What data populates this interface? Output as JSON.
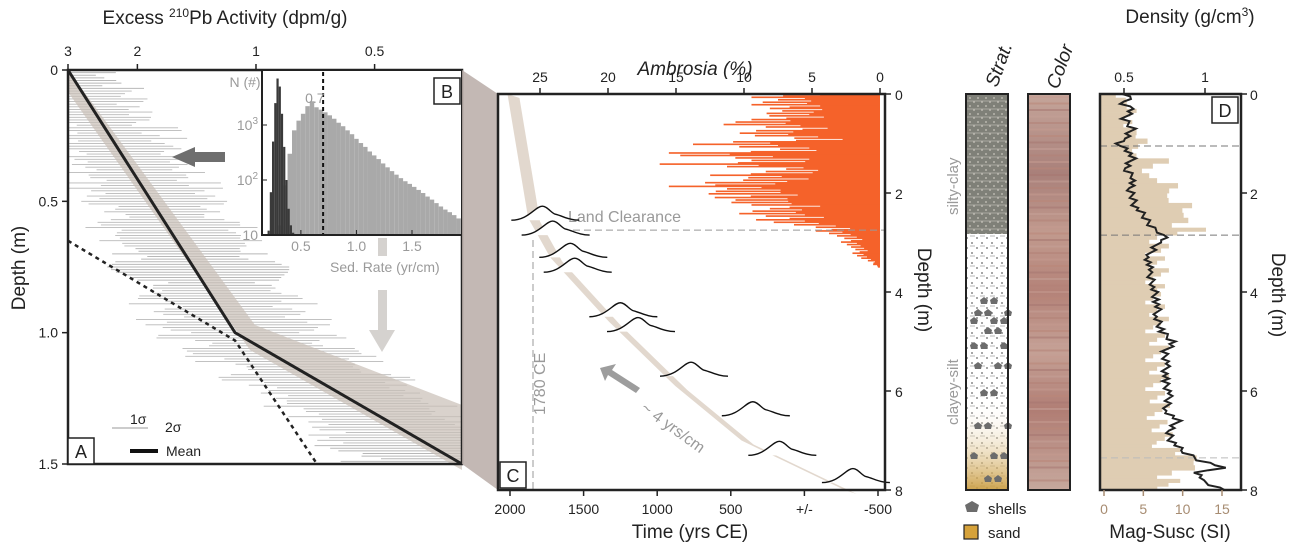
{
  "chart_data": [
    {
      "panel": "A",
      "type": "line",
      "xlabel": "Excess ²¹⁰Pb Activity (dpm/g)",
      "ylabel": "Depth (m)",
      "x_scale": "log",
      "x_ticks": [
        {
          "value": 3,
          "label": "3"
        },
        {
          "value": 2,
          "label": "2"
        },
        {
          "value": 1,
          "label": "1"
        },
        {
          "value": 0.5,
          "label": "0.5"
        }
      ],
      "y_ticks": [
        {
          "value": 0,
          "label": "0"
        },
        {
          "value": 0.5,
          "label": "0.5"
        },
        {
          "value": 1.0,
          "label": "1.0"
        },
        {
          "value": 1.5,
          "label": "1.5"
        }
      ],
      "xlim": [
        3,
        0.3
      ],
      "ylim": [
        0,
        1.5
      ],
      "series": [
        {
          "name": "Mean",
          "style": "solid",
          "points": [
            [
              3,
              0
            ],
            [
              1.13,
              1.0
            ],
            [
              0.3,
              1.5
            ]
          ]
        },
        {
          "style": "dotted",
          "points": [
            [
              3,
              0.65
            ],
            [
              1.13,
              1.03
            ],
            [
              0.7,
              1.5
            ]
          ]
        }
      ],
      "legend": {
        "items": [
          "1σ",
          "2σ",
          "Mean"
        ]
      }
    },
    {
      "panel": "B",
      "type": "bar",
      "title": "N (#)",
      "xlabel": "Sed. Rate (yr/cm)",
      "x_ticks": [
        "0.5",
        "1.0",
        "1.5"
      ],
      "y_ticks": [
        "10",
        "10²",
        "10³"
      ],
      "y_scale": "log",
      "ylim": [
        10,
        10000
      ],
      "xlim": [
        0.15,
        1.95
      ],
      "threshold": {
        "value": 0.7,
        "label": "0.7"
      },
      "bins_dark": {
        "start": 0.2,
        "width": 0.02,
        "values": [
          12,
          60,
          500,
          2500,
          7000,
          5000,
          1600,
          400,
          100,
          30,
          15,
          11
        ]
      },
      "bins_light": {
        "start": 0.3,
        "width": 0.04,
        "values": [
          15,
          80,
          300,
          800,
          1200,
          1600,
          2200,
          2700,
          2100,
          1900,
          1700,
          1500,
          1300,
          1100,
          950,
          800,
          680,
          560,
          470,
          400,
          330,
          280,
          240,
          200,
          170,
          145,
          125,
          108,
          95,
          85,
          75,
          66,
          58,
          50,
          44,
          38,
          33,
          29,
          26,
          23,
          20
        ]
      }
    },
    {
      "panel": "C",
      "type": "area",
      "top_xlabel": "Ambrosia (%)",
      "top_x_ticks": [
        "25",
        "20",
        "15",
        "10",
        "5",
        "0"
      ],
      "xlabel": "Time (yrs CE)",
      "x_ticks": [
        "2000",
        "1500",
        "1000",
        "500",
        "+/-",
        "-500"
      ],
      "ylabel": "Depth (m)",
      "y_ticks": [
        "0",
        "2",
        "4",
        "6",
        "8"
      ],
      "ylim": [
        0,
        8
      ],
      "annotations": [
        "Land Clearance",
        "1780 CE",
        "~ 4 yrs/cm"
      ],
      "age_depth": [
        [
          1990,
          0
        ],
        [
          1850,
          2.5
        ],
        [
          1700,
          3.3
        ],
        [
          1300,
          4.6
        ],
        [
          850,
          5.9
        ],
        [
          400,
          7.0
        ],
        [
          -300,
          8.0
        ]
      ],
      "date_peaks": [
        {
          "age": 1760,
          "depth": 2.55
        },
        {
          "age": 1690,
          "depth": 2.85
        },
        {
          "age": 1570,
          "depth": 3.3
        },
        {
          "age": 1540,
          "depth": 3.6
        },
        {
          "age": 1230,
          "depth": 4.5
        },
        {
          "age": 1110,
          "depth": 4.8
        },
        {
          "age": 750,
          "depth": 5.7
        },
        {
          "age": 330,
          "depth": 6.5
        },
        {
          "age": 150,
          "depth": 7.3
        },
        {
          "age": -350,
          "depth": 7.85
        }
      ],
      "ambrosia_pct": [
        [
          0,
          8
        ],
        [
          0.1,
          6
        ],
        [
          0.2,
          9
        ],
        [
          0.3,
          5
        ],
        [
          0.4,
          8
        ],
        [
          0.5,
          7
        ],
        [
          0.6,
          10
        ],
        [
          0.7,
          6
        ],
        [
          0.8,
          9
        ],
        [
          0.9,
          5
        ],
        [
          1.0,
          11
        ],
        [
          1.1,
          7
        ],
        [
          1.2,
          13
        ],
        [
          1.3,
          8
        ],
        [
          1.4,
          12
        ],
        [
          1.5,
          6
        ],
        [
          1.6,
          10
        ],
        [
          1.7,
          7
        ],
        [
          1.8,
          14
        ],
        [
          1.9,
          9
        ],
        [
          2.0,
          12
        ],
        [
          2.1,
          8
        ],
        [
          2.2,
          10
        ],
        [
          2.3,
          6
        ],
        [
          2.4,
          9
        ],
        [
          2.5,
          7
        ],
        [
          2.6,
          6
        ],
        [
          2.7,
          4
        ],
        [
          2.8,
          3
        ],
        [
          2.9,
          2.5
        ],
        [
          3.0,
          2
        ],
        [
          3.1,
          1.8
        ],
        [
          3.2,
          1.5
        ],
        [
          3.3,
          1.2
        ],
        [
          3.4,
          0.5
        ],
        [
          3.5,
          0
        ]
      ]
    },
    {
      "panel": "strat",
      "type": "table",
      "title": "Strat.",
      "units": [
        {
          "name": "silty-clay",
          "from_depth": 0,
          "to_depth": 2.8
        },
        {
          "name": "clayey-silt",
          "from_depth": 2.8,
          "to_depth": 8
        }
      ],
      "legend": [
        "shells",
        "sand"
      ]
    },
    {
      "panel": "color",
      "type": "heatmap",
      "title": "Color",
      "palette": [
        "#c49a8f",
        "#b98679",
        "#a67771",
        "#c5a197",
        "#b38276"
      ]
    },
    {
      "panel": "D",
      "type": "line",
      "top_xlabel": "Density (g/cm³)",
      "top_x_ticks": [
        "0.5",
        "1"
      ],
      "xlabel": "Mag-Susc (SI)",
      "x_ticks": [
        "0",
        "5",
        "10",
        "15"
      ],
      "ylabel": "Depth (m)",
      "y_ticks": [
        "0",
        "2",
        "4",
        "6",
        "8"
      ],
      "ylim": [
        0,
        8
      ],
      "dashed_depths": [
        1.05,
        2.85,
        7.35
      ],
      "density": [
        [
          0,
          0.52
        ],
        [
          0.1,
          0.54
        ],
        [
          0.2,
          0.5
        ],
        [
          0.3,
          0.55
        ],
        [
          0.5,
          0.5
        ],
        [
          0.7,
          0.56
        ],
        [
          0.9,
          0.52
        ],
        [
          1.0,
          0.43
        ],
        [
          1.1,
          0.53
        ],
        [
          1.3,
          0.55
        ],
        [
          1.5,
          0.51
        ],
        [
          1.7,
          0.57
        ],
        [
          1.9,
          0.53
        ],
        [
          2.1,
          0.56
        ],
        [
          2.3,
          0.58
        ],
        [
          2.5,
          0.63
        ],
        [
          2.7,
          0.68
        ],
        [
          2.85,
          0.76
        ],
        [
          3.0,
          0.71
        ],
        [
          3.3,
          0.66
        ],
        [
          3.6,
          0.65
        ],
        [
          3.9,
          0.69
        ],
        [
          4.2,
          0.71
        ],
        [
          4.5,
          0.7
        ],
        [
          4.8,
          0.74
        ],
        [
          5.0,
          0.81
        ],
        [
          5.2,
          0.75
        ],
        [
          5.5,
          0.77
        ],
        [
          5.8,
          0.75
        ],
        [
          6.1,
          0.78
        ],
        [
          6.4,
          0.77
        ],
        [
          6.6,
          0.83
        ],
        [
          6.8,
          0.78
        ],
        [
          7.0,
          0.8
        ],
        [
          7.2,
          0.85
        ],
        [
          7.4,
          0.97
        ],
        [
          7.55,
          1.12
        ],
        [
          7.65,
          0.95
        ],
        [
          7.8,
          0.98
        ],
        [
          8.0,
          1.12
        ]
      ],
      "mag_susc": [
        [
          0,
          2
        ],
        [
          0.3,
          4
        ],
        [
          0.6,
          3
        ],
        [
          0.9,
          5
        ],
        [
          1.1,
          4
        ],
        [
          1.3,
          7
        ],
        [
          1.5,
          5
        ],
        [
          1.7,
          9
        ],
        [
          1.9,
          8
        ],
        [
          2.1,
          10
        ],
        [
          2.3,
          9
        ],
        [
          2.5,
          12
        ],
        [
          2.7,
          11
        ],
        [
          2.85,
          7
        ],
        [
          3.2,
          7
        ],
        [
          4.0,
          7
        ],
        [
          5.0,
          7
        ],
        [
          6.0,
          7
        ],
        [
          7.0,
          7.5
        ],
        [
          7.3,
          10
        ],
        [
          7.5,
          12
        ],
        [
          7.7,
          9
        ],
        [
          8.0,
          8
        ]
      ]
    }
  ],
  "panel_labels": [
    "A",
    "B",
    "C",
    "D"
  ]
}
